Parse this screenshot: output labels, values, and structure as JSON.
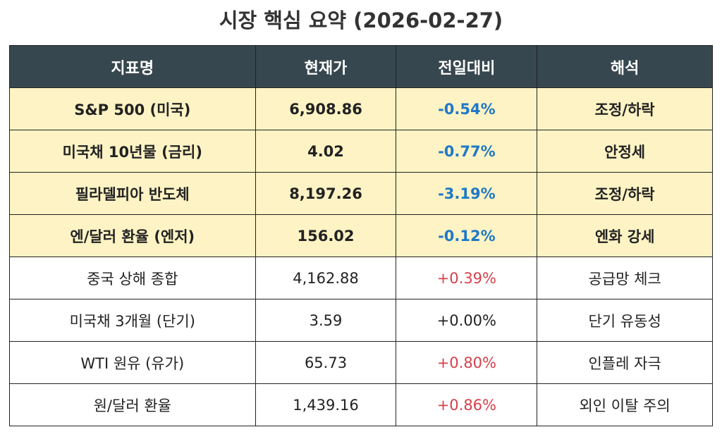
{
  "title": "시장 핵심 요약 (2026-02-27)",
  "table": {
    "header": [
      "지표명",
      "현재가",
      "전일대비",
      "해석"
    ],
    "rows": [
      [
        "S&P 500 (미국)",
        "6,908.86",
        "-0.54%",
        "조정/하락"
      ],
      [
        "미국채 10년물 (금리)",
        "4.02",
        "-0.77%",
        "안정세"
      ],
      [
        "필라델피아 반도체",
        "8,197.26",
        "-3.19%",
        "조정/하락"
      ],
      [
        "엔/달러 환율 (엔저)",
        "156.02",
        "-0.12%",
        "엔화 강세"
      ],
      [
        "중국 상해 종합",
        "4,162.88",
        "+0.39%",
        "공급망 체크"
      ],
      [
        "미국채 3개월 (단기)",
        "3.59",
        "+0.00%",
        "단기 유동성"
      ],
      [
        "WTI 원유 (유가)",
        "65.73",
        "+0.80%",
        "인플레 자극"
      ],
      [
        "원/달러 환율",
        "1,439.16",
        "+0.86%",
        "외인 이탈 주의"
      ]
    ]
  }
}
